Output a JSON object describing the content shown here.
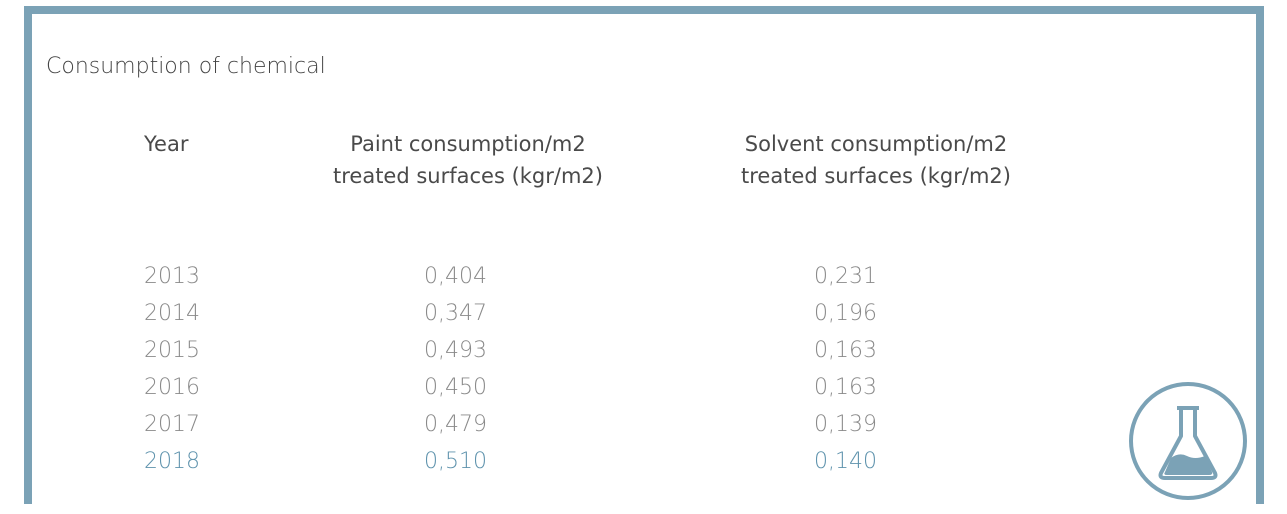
{
  "title": "Consumption of chemical",
  "columns": {
    "year": "Year",
    "paint_line1": "Paint consumption/m2",
    "paint_line2": "treated surfaces (kgr/m2)",
    "solvent_line1": "Solvent consumption/m2",
    "solvent_line2": "treated surfaces (kgr/m2)"
  },
  "rows": [
    {
      "year": "2013",
      "paint": "0,404",
      "solvent": "0,231"
    },
    {
      "year": "2014",
      "paint": "0,347",
      "solvent": "0,196"
    },
    {
      "year": "2015",
      "paint": "0,493",
      "solvent": "0,163"
    },
    {
      "year": "2016",
      "paint": "0,450",
      "solvent": "0,163"
    },
    {
      "year": "2017",
      "paint": "0,479",
      "solvent": "0,139"
    },
    {
      "year": "2018",
      "paint": "0,510",
      "solvent": "0,140"
    }
  ],
  "colors": {
    "border": "#7ba2b6",
    "highlight": "#5f93ad",
    "text": "#4a4a4a",
    "muted": "#8a8a8a"
  },
  "icon": "flask-icon"
}
